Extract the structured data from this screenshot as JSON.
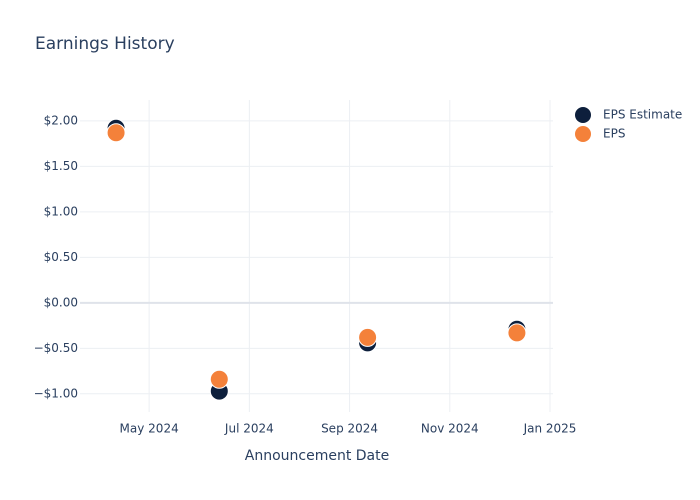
{
  "chart_data": {
    "type": "scatter",
    "title": "Earnings History",
    "x_label": "Announcement Date",
    "x": [
      3.34,
      5.4,
      8.36,
      11.34
    ],
    "xlim": [
      2.62,
      12.06
    ],
    "xticks": [
      {
        "value": 4,
        "label": "May 2024"
      },
      {
        "value": 6,
        "label": "Jul 2024"
      },
      {
        "value": 8,
        "label": "Sep 2024"
      },
      {
        "value": 10,
        "label": "Nov 2024"
      },
      {
        "value": 12,
        "label": "Jan 2025"
      }
    ],
    "ylim": [
      -1.2,
      2.23
    ],
    "yticks": [
      {
        "value": -1,
        "label": "−$1.00"
      },
      {
        "value": -0.5,
        "label": "−$0.50"
      },
      {
        "value": 0,
        "label": "$0.00"
      },
      {
        "value": 0.5,
        "label": "$0.50"
      },
      {
        "value": 1,
        "label": "$1.00"
      },
      {
        "value": 1.5,
        "label": "$1.50"
      },
      {
        "value": 2,
        "label": "$2.00"
      }
    ],
    "grid": true,
    "legend": "top-right",
    "series": [
      {
        "name": "EPS Estimate",
        "color": "#0d1f3c",
        "values": [
          1.92,
          -0.97,
          -0.44,
          -0.29
        ]
      },
      {
        "name": "EPS",
        "color": "#f4813a",
        "values": [
          1.87,
          -0.84,
          -0.38,
          -0.33
        ]
      }
    ]
  }
}
